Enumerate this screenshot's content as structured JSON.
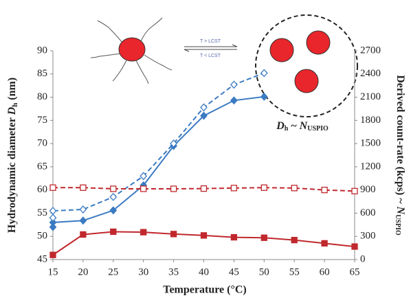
{
  "chart_data": {
    "type": "line",
    "xlabel": "Temperature (°C)",
    "ylabel": [
      "Hydrodynamic diameter ",
      "D",
      "h",
      " (nm)"
    ],
    "y2label": [
      "Derived count-rate (kcps) ~ ",
      "N",
      "USPIO"
    ],
    "annotations": [
      "T > LCST",
      "T < LCST"
    ],
    "formula": [
      "D",
      "h",
      " ~ ",
      "N",
      "USPIO"
    ],
    "xlim": [
      15,
      65
    ],
    "xticks": [
      15,
      20,
      25,
      30,
      35,
      40,
      45,
      50,
      55,
      60,
      65
    ],
    "ylim": [
      45,
      90
    ],
    "yticks": [
      45,
      50,
      55,
      60,
      65,
      70,
      75,
      80,
      85,
      90
    ],
    "y2lim": [
      0,
      2700
    ],
    "y2ticks": [
      0,
      300,
      600,
      900,
      1200,
      1500,
      1800,
      2100,
      2400,
      2700
    ],
    "series": [
      {
        "color": "#3b7bc2",
        "marker": "diamond",
        "filled": true,
        "dashed": false,
        "x": [
          15,
          15,
          20,
          25,
          30,
          35,
          40,
          45,
          50
        ],
        "values": [
          52,
          53,
          53.4,
          55.6,
          61,
          69.5,
          76,
          79.3,
          80.1
        ]
      },
      {
        "color": "#3b7bc2",
        "marker": "diamond",
        "filled": false,
        "dashed": true,
        "x": [
          15,
          15,
          20,
          25,
          30,
          35,
          40,
          45,
          50
        ],
        "values": [
          54,
          55.5,
          55.8,
          58.5,
          63,
          70,
          77.8,
          82.7,
          85.2
        ]
      },
      {
        "color": "#c0282d",
        "marker": "square",
        "filled": true,
        "dashed": false,
        "axis": "y2",
        "x": [
          15,
          20,
          25,
          30,
          35,
          40,
          45,
          50,
          55,
          60,
          65
        ],
        "values": [
          60,
          324,
          360,
          354,
          330,
          312,
          288,
          282,
          252,
          210,
          168
        ]
      },
      {
        "color": "#c0282d",
        "marker": "square",
        "filled": false,
        "dashed": true,
        "axis": "y2",
        "x": [
          15,
          20,
          25,
          30,
          35,
          40,
          45,
          50,
          55,
          60,
          65
        ],
        "values": [
          930,
          930,
          915,
          915,
          915,
          918,
          925,
          930,
          925,
          900,
          885
        ]
      }
    ]
  }
}
